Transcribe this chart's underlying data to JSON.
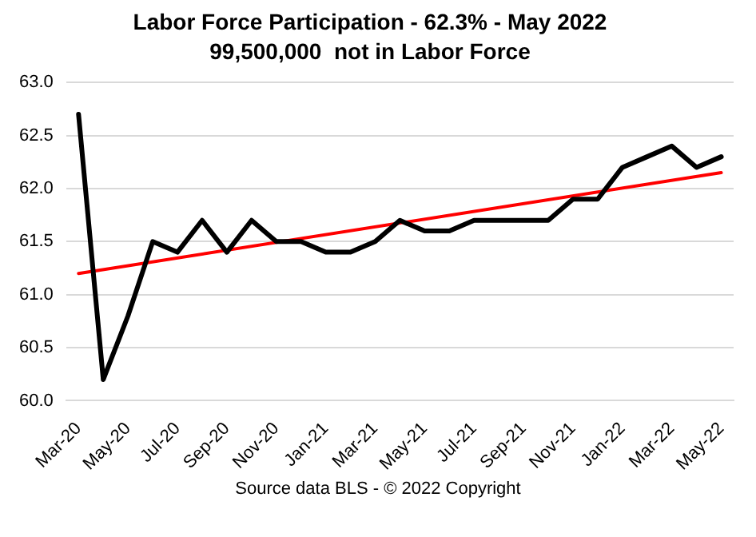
{
  "chart_data": {
    "type": "line",
    "title": "Labor Force Participation - 62.3% - May 2022",
    "subtitle": "99,500,000  not in Labor Force",
    "categories": [
      "Mar-20",
      null,
      "May-20",
      null,
      "Jul-20",
      null,
      "Sep-20",
      null,
      "Nov-20",
      null,
      "Jan-21",
      null,
      "Mar-21",
      null,
      "May-21",
      null,
      "Jul-21",
      null,
      "Sep-21",
      null,
      "Nov-21",
      null,
      "Jan-22",
      null,
      "Mar-22",
      null,
      "May-22"
    ],
    "series": [
      {
        "color": "#000000",
        "values": [
          62.7,
          60.2,
          60.8,
          61.5,
          61.4,
          61.7,
          61.4,
          61.7,
          61.5,
          61.5,
          61.4,
          61.4,
          61.5,
          61.7,
          61.6,
          61.6,
          61.7,
          61.7,
          61.7,
          61.7,
          61.9,
          61.9,
          62.2,
          62.3,
          62.4,
          62.2,
          62.3
        ]
      },
      {
        "color": "#ff0000",
        "x": [
          "Mar-20",
          "May-22"
        ],
        "values": [
          61.2,
          62.15
        ]
      }
    ],
    "ylim": [
      60.0,
      63.0
    ],
    "yticks": [
      {
        "value": 60,
        "label": "60.0"
      },
      {
        "value": 60.5,
        "label": "60.5"
      },
      {
        "value": 61,
        "label": "61.0"
      },
      {
        "value": 61.5,
        "label": "61.5"
      },
      {
        "value": 62,
        "label": "62.0"
      },
      {
        "value": 62.5,
        "label": "62.5"
      },
      {
        "value": 63,
        "label": "63.0"
      }
    ],
    "grid": "y",
    "legend": false,
    "marker": "none",
    "line_style": "solid",
    "annotations": [
      "Source data BLS - © 2022 Copyright"
    ]
  }
}
